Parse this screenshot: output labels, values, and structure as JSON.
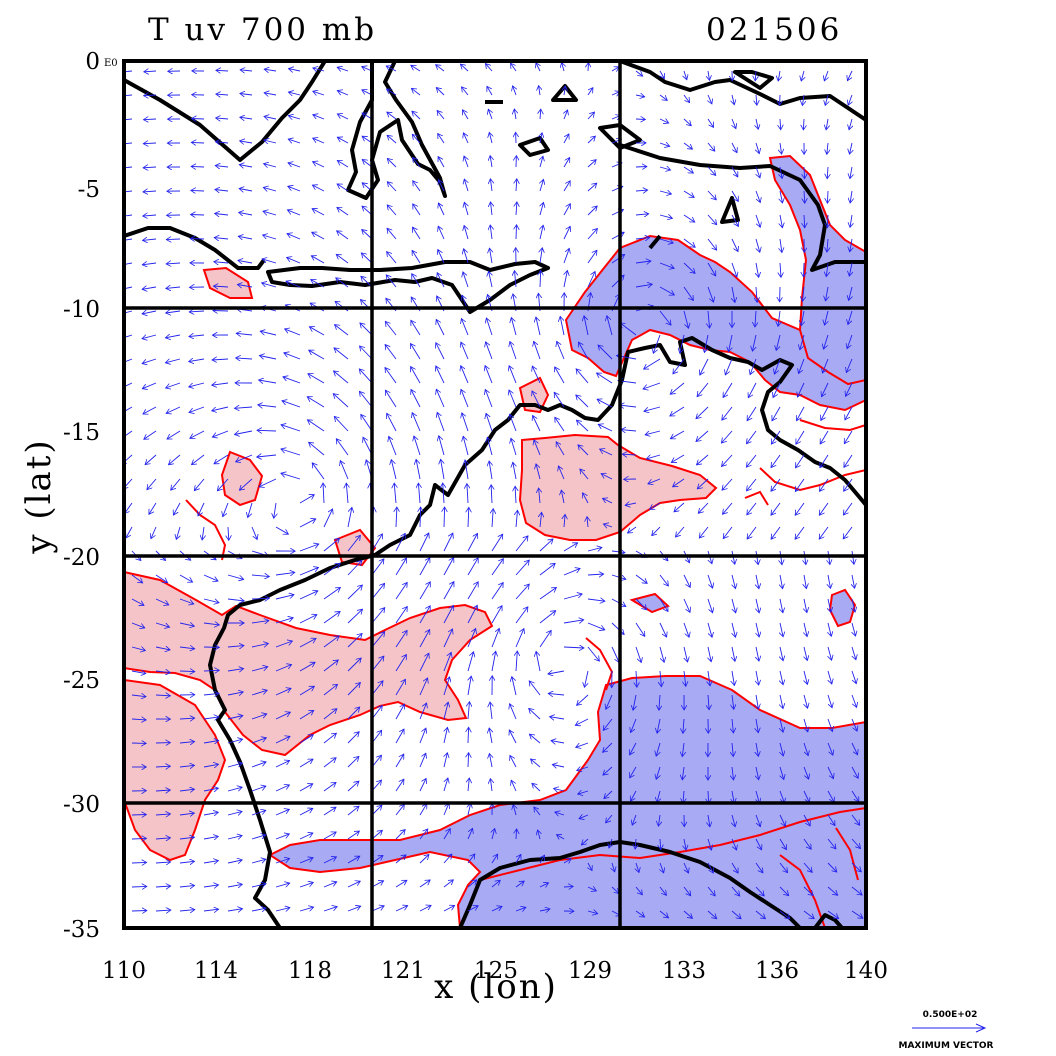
{
  "map": {
    "title_left": "T  uv  700  mb",
    "title_right": "021506",
    "xlabel": "x  (lon)",
    "ylabel": "y  (lat)",
    "y_top_suffix": "E0",
    "x_ticks": [
      "110",
      "114",
      "118",
      "121",
      "125",
      "129",
      "133",
      "136",
      "140"
    ],
    "y_ticks": [
      "0",
      "-5",
      "-10",
      "-15",
      "-20",
      "-25",
      "-30",
      "-35"
    ],
    "lon_range": [
      110,
      140
    ],
    "lat_range": [
      -35,
      0
    ],
    "grid_lines_lon": [
      120,
      130
    ],
    "grid_lines_lat": [
      -10,
      -20,
      -30
    ],
    "legend": {
      "scale_value": "0.500E+02",
      "label": "MAXIMUM VECTOR"
    },
    "colors": {
      "coastline": "#000000",
      "contour": "#ff0000",
      "warm_fill": "#f4c4c8",
      "cold_fill": "#a8aaf4",
      "vector": "#2222ee"
    }
  }
}
